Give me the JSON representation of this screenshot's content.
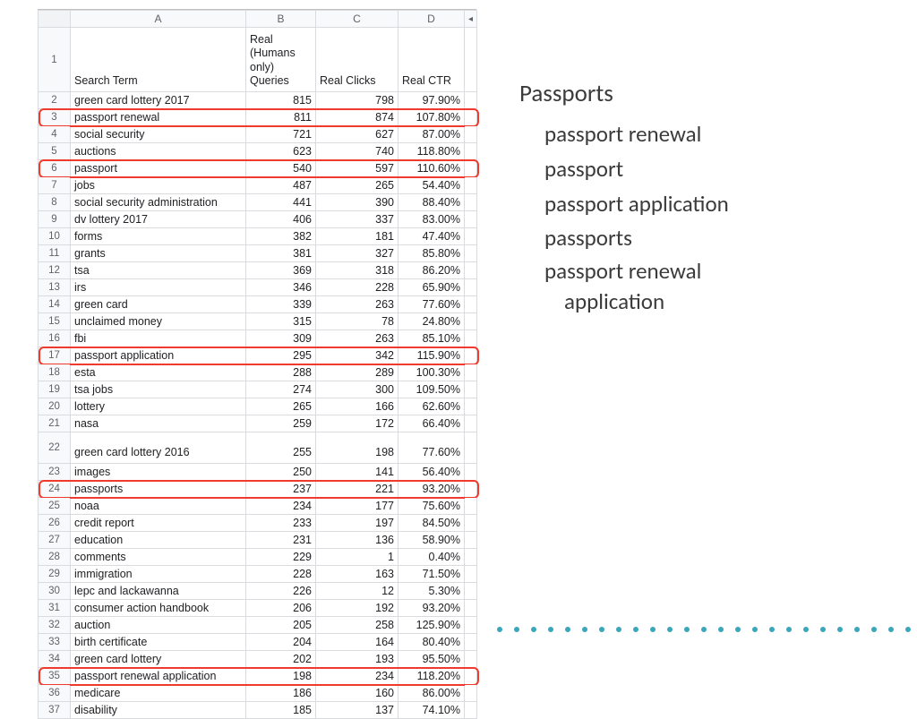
{
  "colors": {
    "highlight": "#f03a2d",
    "dot": "#3aa6b9",
    "grid": "#d9dbde",
    "hdrbg": "#f8f9fa",
    "text": "#202124"
  },
  "sheet": {
    "col_letters": [
      "A",
      "B",
      "C",
      "D"
    ],
    "scroll_glyph": "◂",
    "headers": {
      "A": "Search Term",
      "B": "Real (Humans only) Queries",
      "C": "Real Clicks",
      "D": "Real CTR"
    },
    "rows": [
      {
        "n": 2,
        "term": "green card lottery 2017",
        "q": "815",
        "clk": "798",
        "ctr": "97.90%"
      },
      {
        "n": 3,
        "term": "passport renewal",
        "q": "811",
        "clk": "874",
        "ctr": "107.80%",
        "hl": true
      },
      {
        "n": 4,
        "term": "social security",
        "q": "721",
        "clk": "627",
        "ctr": "87.00%"
      },
      {
        "n": 5,
        "term": "auctions",
        "q": "623",
        "clk": "740",
        "ctr": "118.80%"
      },
      {
        "n": 6,
        "term": "passport",
        "q": "540",
        "clk": "597",
        "ctr": "110.60%",
        "hl": true
      },
      {
        "n": 7,
        "term": "jobs",
        "q": "487",
        "clk": "265",
        "ctr": "54.40%"
      },
      {
        "n": 8,
        "term": "social security administration",
        "q": "441",
        "clk": "390",
        "ctr": "88.40%"
      },
      {
        "n": 9,
        "term": "dv lottery 2017",
        "q": "406",
        "clk": "337",
        "ctr": "83.00%"
      },
      {
        "n": 10,
        "term": "forms",
        "q": "382",
        "clk": "181",
        "ctr": "47.40%"
      },
      {
        "n": 11,
        "term": "grants",
        "q": "381",
        "clk": "327",
        "ctr": "85.80%"
      },
      {
        "n": 12,
        "term": "tsa",
        "q": "369",
        "clk": "318",
        "ctr": "86.20%"
      },
      {
        "n": 13,
        "term": "irs",
        "q": "346",
        "clk": "228",
        "ctr": "65.90%"
      },
      {
        "n": 14,
        "term": "green card",
        "q": "339",
        "clk": "263",
        "ctr": "77.60%"
      },
      {
        "n": 15,
        "term": "unclaimed money",
        "q": "315",
        "clk": "78",
        "ctr": "24.80%"
      },
      {
        "n": 16,
        "term": "fbi",
        "q": "309",
        "clk": "263",
        "ctr": "85.10%"
      },
      {
        "n": 17,
        "term": "passport application",
        "q": "295",
        "clk": "342",
        "ctr": "115.90%",
        "hl": true
      },
      {
        "n": 18,
        "term": "esta",
        "q": "288",
        "clk": "289",
        "ctr": "100.30%"
      },
      {
        "n": 19,
        "term": "tsa jobs",
        "q": "274",
        "clk": "300",
        "ctr": "109.50%"
      },
      {
        "n": 20,
        "term": "lottery",
        "q": "265",
        "clk": "166",
        "ctr": "62.60%"
      },
      {
        "n": 21,
        "term": "nasa",
        "q": "259",
        "clk": "172",
        "ctr": "66.40%"
      },
      {
        "n": 22,
        "term": "green card lottery 2016",
        "q": "255",
        "clk": "198",
        "ctr": "77.60%",
        "tall": true
      },
      {
        "n": 23,
        "term": "images",
        "q": "250",
        "clk": "141",
        "ctr": "56.40%"
      },
      {
        "n": 24,
        "term": "passports",
        "q": "237",
        "clk": "221",
        "ctr": "93.20%",
        "hl": true
      },
      {
        "n": 25,
        "term": "noaa",
        "q": "234",
        "clk": "177",
        "ctr": "75.60%"
      },
      {
        "n": 26,
        "term": "credit report",
        "q": "233",
        "clk": "197",
        "ctr": "84.50%"
      },
      {
        "n": 27,
        "term": "education",
        "q": "231",
        "clk": "136",
        "ctr": "58.90%"
      },
      {
        "n": 28,
        "term": "comments",
        "q": "229",
        "clk": "1",
        "ctr": "0.40%"
      },
      {
        "n": 29,
        "term": "immigration",
        "q": "228",
        "clk": "163",
        "ctr": "71.50%"
      },
      {
        "n": 30,
        "term": "lepc and lackawanna",
        "q": "226",
        "clk": "12",
        "ctr": "5.30%"
      },
      {
        "n": 31,
        "term": "consumer action handbook",
        "q": "206",
        "clk": "192",
        "ctr": "93.20%"
      },
      {
        "n": 32,
        "term": "auction",
        "q": "205",
        "clk": "258",
        "ctr": "125.90%"
      },
      {
        "n": 33,
        "term": "birth certificate",
        "q": "204",
        "clk": "164",
        "ctr": "80.40%"
      },
      {
        "n": 34,
        "term": "green card lottery",
        "q": "202",
        "clk": "193",
        "ctr": "95.50%"
      },
      {
        "n": 35,
        "term": "passport renewal application",
        "q": "198",
        "clk": "234",
        "ctr": "118.20%",
        "hl": true
      },
      {
        "n": 36,
        "term": "medicare",
        "q": "186",
        "clk": "160",
        "ctr": "86.00%"
      },
      {
        "n": 37,
        "term": "disability",
        "q": "185",
        "clk": "137",
        "ctr": "74.10%"
      }
    ]
  },
  "rhs": {
    "title": "Passports",
    "items": [
      "passport renewal",
      "passport",
      "passport application",
      "passports"
    ],
    "wrap_item_l1": "passport renewal",
    "wrap_item_l2": "application"
  },
  "dot_count": 26
}
